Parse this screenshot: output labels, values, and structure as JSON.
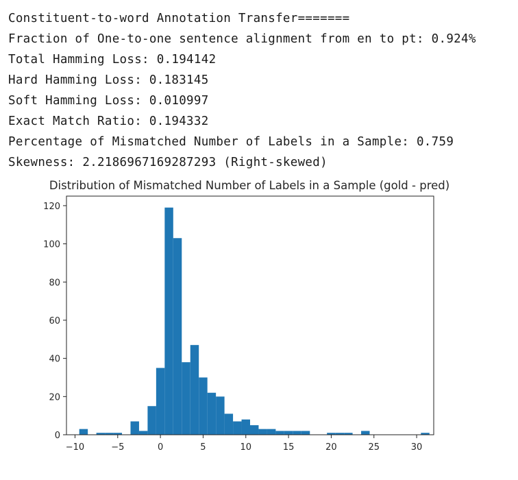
{
  "output": {
    "lines": [
      "Constituent-to-word Annotation Transfer=======",
      "Fraction of One-to-one sentence alignment from en to pt: 0.924%",
      "Total Hamming Loss: 0.194142",
      "Hard Hamming Loss: 0.183145",
      "Soft Hamming Loss: 0.010997",
      "Exact Match Ratio: 0.194332",
      "Percentage of Mismatched Number of Labels in a Sample: 0.759",
      "Skewness: 2.2186967169287293 (Right-skewed)"
    ]
  },
  "chart_data": {
    "type": "bar",
    "title": "Distribution of Mismatched Number of Labels in a Sample (gold - pred)",
    "xlabel": "",
    "ylabel": "",
    "xlim": [
      -11,
      32
    ],
    "ylim": [
      0,
      125
    ],
    "xticks": [
      -10,
      -5,
      0,
      5,
      10,
      15,
      20,
      25,
      30
    ],
    "yticks": [
      0,
      20,
      40,
      60,
      80,
      100,
      120
    ],
    "bar_color": "#1f77b4",
    "grid": false,
    "bins": [
      {
        "left": -9.5,
        "right": -8.5,
        "count": 3
      },
      {
        "left": -8.5,
        "right": -7.5,
        "count": 0
      },
      {
        "left": -7.5,
        "right": -6.5,
        "count": 1
      },
      {
        "left": -6.5,
        "right": -5.5,
        "count": 1
      },
      {
        "left": -5.5,
        "right": -4.5,
        "count": 1
      },
      {
        "left": -4.5,
        "right": -3.5,
        "count": 0
      },
      {
        "left": -3.5,
        "right": -2.5,
        "count": 7
      },
      {
        "left": -2.5,
        "right": -1.5,
        "count": 2
      },
      {
        "left": -1.5,
        "right": -0.5,
        "count": 15
      },
      {
        "left": -0.5,
        "right": 0.5,
        "count": 35
      },
      {
        "left": 0.5,
        "right": 1.5,
        "count": 119
      },
      {
        "left": 1.5,
        "right": 2.5,
        "count": 103
      },
      {
        "left": 2.5,
        "right": 3.5,
        "count": 38
      },
      {
        "left": 3.5,
        "right": 4.5,
        "count": 47
      },
      {
        "left": 4.5,
        "right": 5.5,
        "count": 30
      },
      {
        "left": 5.5,
        "right": 6.5,
        "count": 22
      },
      {
        "left": 6.5,
        "right": 7.5,
        "count": 20
      },
      {
        "left": 7.5,
        "right": 8.5,
        "count": 11
      },
      {
        "left": 8.5,
        "right": 9.5,
        "count": 7
      },
      {
        "left": 9.5,
        "right": 10.5,
        "count": 8
      },
      {
        "left": 10.5,
        "right": 11.5,
        "count": 5
      },
      {
        "left": 11.5,
        "right": 12.5,
        "count": 3
      },
      {
        "left": 12.5,
        "right": 13.5,
        "count": 3
      },
      {
        "left": 13.5,
        "right": 14.5,
        "count": 2
      },
      {
        "left": 14.5,
        "right": 15.5,
        "count": 2
      },
      {
        "left": 15.5,
        "right": 16.5,
        "count": 2
      },
      {
        "left": 16.5,
        "right": 17.5,
        "count": 2
      },
      {
        "left": 19.5,
        "right": 20.5,
        "count": 1
      },
      {
        "left": 20.5,
        "right": 21.5,
        "count": 1
      },
      {
        "left": 21.5,
        "right": 22.5,
        "count": 1
      },
      {
        "left": 23.5,
        "right": 24.5,
        "count": 2
      },
      {
        "left": 24.5,
        "right": 25.5,
        "count": 0
      },
      {
        "left": 30.5,
        "right": 31.5,
        "count": 1
      }
    ]
  }
}
